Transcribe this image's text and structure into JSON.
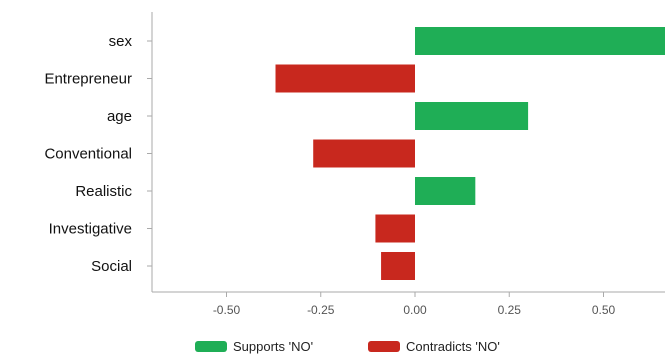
{
  "chart_data": {
    "type": "bar",
    "orientation": "horizontal",
    "categories": [
      "sex",
      "Entrepreneur",
      "age",
      "Conventional",
      "Realistic",
      "Investigative",
      "Social"
    ],
    "values": [
      0.73,
      -0.37,
      0.3,
      -0.27,
      0.16,
      -0.105,
      -0.09
    ],
    "xlim": [
      -0.7,
      0.65
    ],
    "xticks": [
      -0.5,
      -0.25,
      0.0,
      0.25,
      0.5
    ],
    "xtick_labels": [
      "-0.50",
      "-0.25",
      "0.00",
      "0.25",
      "0.50"
    ],
    "title": "",
    "xlabel": "",
    "ylabel": "",
    "grid": false,
    "legend_position": "bottom",
    "legend": [
      {
        "label": "Supports 'NO'",
        "color": "#1fae56"
      },
      {
        "label": "Contradicts 'NO'",
        "color": "#c8281e"
      }
    ],
    "colors": {
      "positive": "#1fae56",
      "negative": "#c8281e",
      "axis": "#aaaaaa"
    }
  }
}
